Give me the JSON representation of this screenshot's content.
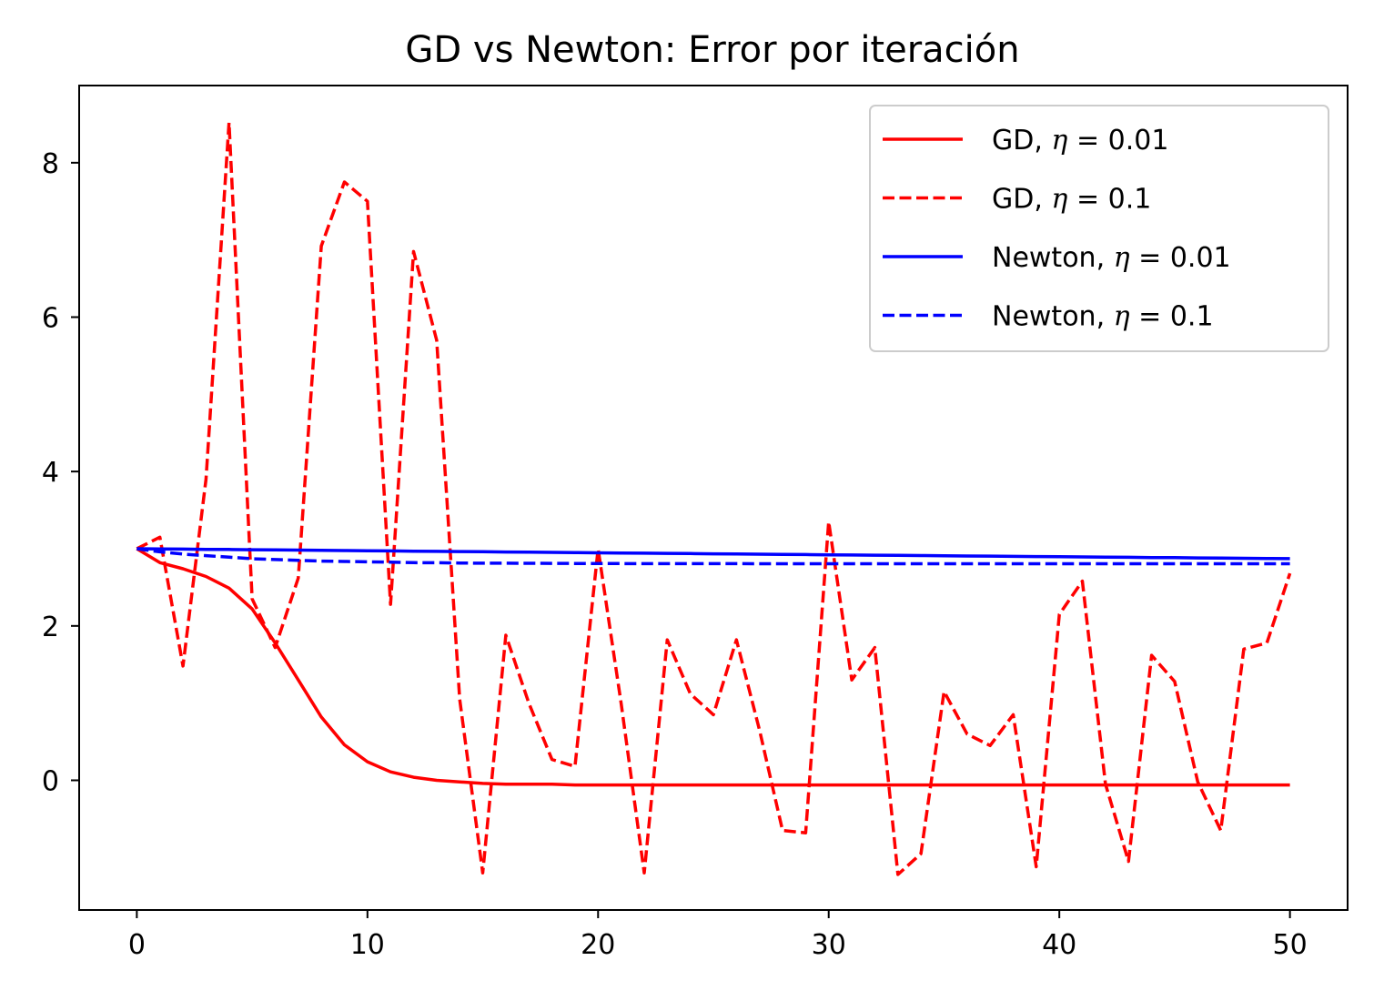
{
  "chart_data": {
    "type": "line",
    "title": "GD vs Newton: Error por iteración",
    "xlabel": "",
    "ylabel": "",
    "xlim": [
      -2.5,
      52.5
    ],
    "ylim": [
      -1.68,
      9.0
    ],
    "x_ticks": [
      0,
      10,
      20,
      30,
      40,
      50
    ],
    "y_ticks": [
      0,
      2,
      4,
      6,
      8
    ],
    "x_tick_labels": [
      "0",
      "10",
      "20",
      "30",
      "40",
      "50"
    ],
    "y_tick_labels": [
      "0",
      "2",
      "4",
      "6",
      "8"
    ],
    "grid": false,
    "legend": {
      "position": "top-right",
      "entries": [
        {
          "prefix": "GD, ",
          "math": "η",
          "suffix": " = 0.01"
        },
        {
          "prefix": "GD, ",
          "math": "η",
          "suffix": " = 0.1"
        },
        {
          "prefix": "Newton, ",
          "math": "η",
          "suffix": " = 0.01"
        },
        {
          "prefix": "Newton, ",
          "math": "η",
          "suffix": " = 0.1"
        }
      ]
    },
    "x": [
      0,
      1,
      2,
      3,
      4,
      5,
      6,
      7,
      8,
      9,
      10,
      11,
      12,
      13,
      14,
      15,
      16,
      17,
      18,
      19,
      20,
      21,
      22,
      23,
      24,
      25,
      26,
      27,
      28,
      29,
      30,
      31,
      32,
      33,
      34,
      35,
      36,
      37,
      38,
      39,
      40,
      41,
      42,
      43,
      44,
      45,
      46,
      47,
      48,
      49,
      50
    ],
    "series": [
      {
        "name": "GD, η = 0.01",
        "color": "#ff0000",
        "dash": "solid",
        "values": [
          3.0,
          2.82,
          2.74,
          2.64,
          2.49,
          2.22,
          1.78,
          1.3,
          0.82,
          0.46,
          0.24,
          0.11,
          0.04,
          0.0,
          -0.02,
          -0.04,
          -0.05,
          -0.05,
          -0.05,
          -0.06,
          -0.06,
          -0.06,
          -0.06,
          -0.06,
          -0.06,
          -0.06,
          -0.06,
          -0.06,
          -0.06,
          -0.06,
          -0.06,
          -0.06,
          -0.06,
          -0.06,
          -0.06,
          -0.06,
          -0.06,
          -0.06,
          -0.06,
          -0.06,
          -0.06,
          -0.06,
          -0.06,
          -0.06,
          -0.06,
          -0.06,
          -0.06,
          -0.06,
          -0.06,
          -0.06,
          -0.06
        ]
      },
      {
        "name": "GD, η = 0.1",
        "color": "#ff0000",
        "dash": "dashed",
        "values": [
          3.0,
          3.15,
          1.48,
          3.9,
          8.52,
          2.35,
          1.72,
          2.62,
          6.92,
          7.75,
          7.5,
          2.28,
          6.85,
          5.7,
          1.05,
          -1.2,
          1.88,
          1.0,
          0.27,
          0.18,
          3.0,
          1.0,
          -1.2,
          1.82,
          1.12,
          0.85,
          1.82,
          0.65,
          -0.65,
          -0.68,
          3.35,
          1.3,
          1.72,
          -1.22,
          -0.95,
          1.15,
          0.6,
          0.45,
          0.85,
          -1.12,
          2.15,
          2.58,
          -0.05,
          -1.05,
          1.62,
          1.28,
          -0.02,
          -0.65,
          1.7,
          1.78,
          2.68
        ]
      },
      {
        "name": "Newton, η = 0.01",
        "color": "#0000ff",
        "dash": "solid",
        "values": [
          3.0,
          2.997,
          2.995,
          2.992,
          2.99,
          2.987,
          2.984,
          2.982,
          2.979,
          2.976,
          2.974,
          2.971,
          2.968,
          2.966,
          2.963,
          2.961,
          2.958,
          2.955,
          2.953,
          2.95,
          2.947,
          2.945,
          2.942,
          2.94,
          2.937,
          2.934,
          2.932,
          2.929,
          2.927,
          2.924,
          2.921,
          2.919,
          2.916,
          2.914,
          2.911,
          2.909,
          2.906,
          2.904,
          2.901,
          2.899,
          2.896,
          2.894,
          2.891,
          2.889,
          2.886,
          2.884,
          2.881,
          2.879,
          2.876,
          2.874,
          2.871
        ]
      },
      {
        "name": "Newton, η = 0.1",
        "color": "#0000ff",
        "dash": "dashed",
        "values": [
          3.0,
          2.96,
          2.93,
          2.91,
          2.89,
          2.87,
          2.86,
          2.85,
          2.84,
          2.835,
          2.83,
          2.825,
          2.82,
          2.818,
          2.815,
          2.813,
          2.812,
          2.811,
          2.81,
          2.809,
          2.808,
          2.808,
          2.807,
          2.807,
          2.806,
          2.806,
          2.806,
          2.805,
          2.805,
          2.805,
          2.805,
          2.805,
          2.805,
          2.805,
          2.805,
          2.805,
          2.805,
          2.805,
          2.805,
          2.805,
          2.805,
          2.805,
          2.805,
          2.805,
          2.805,
          2.805,
          2.805,
          2.805,
          2.805,
          2.805,
          2.805
        ]
      }
    ]
  }
}
